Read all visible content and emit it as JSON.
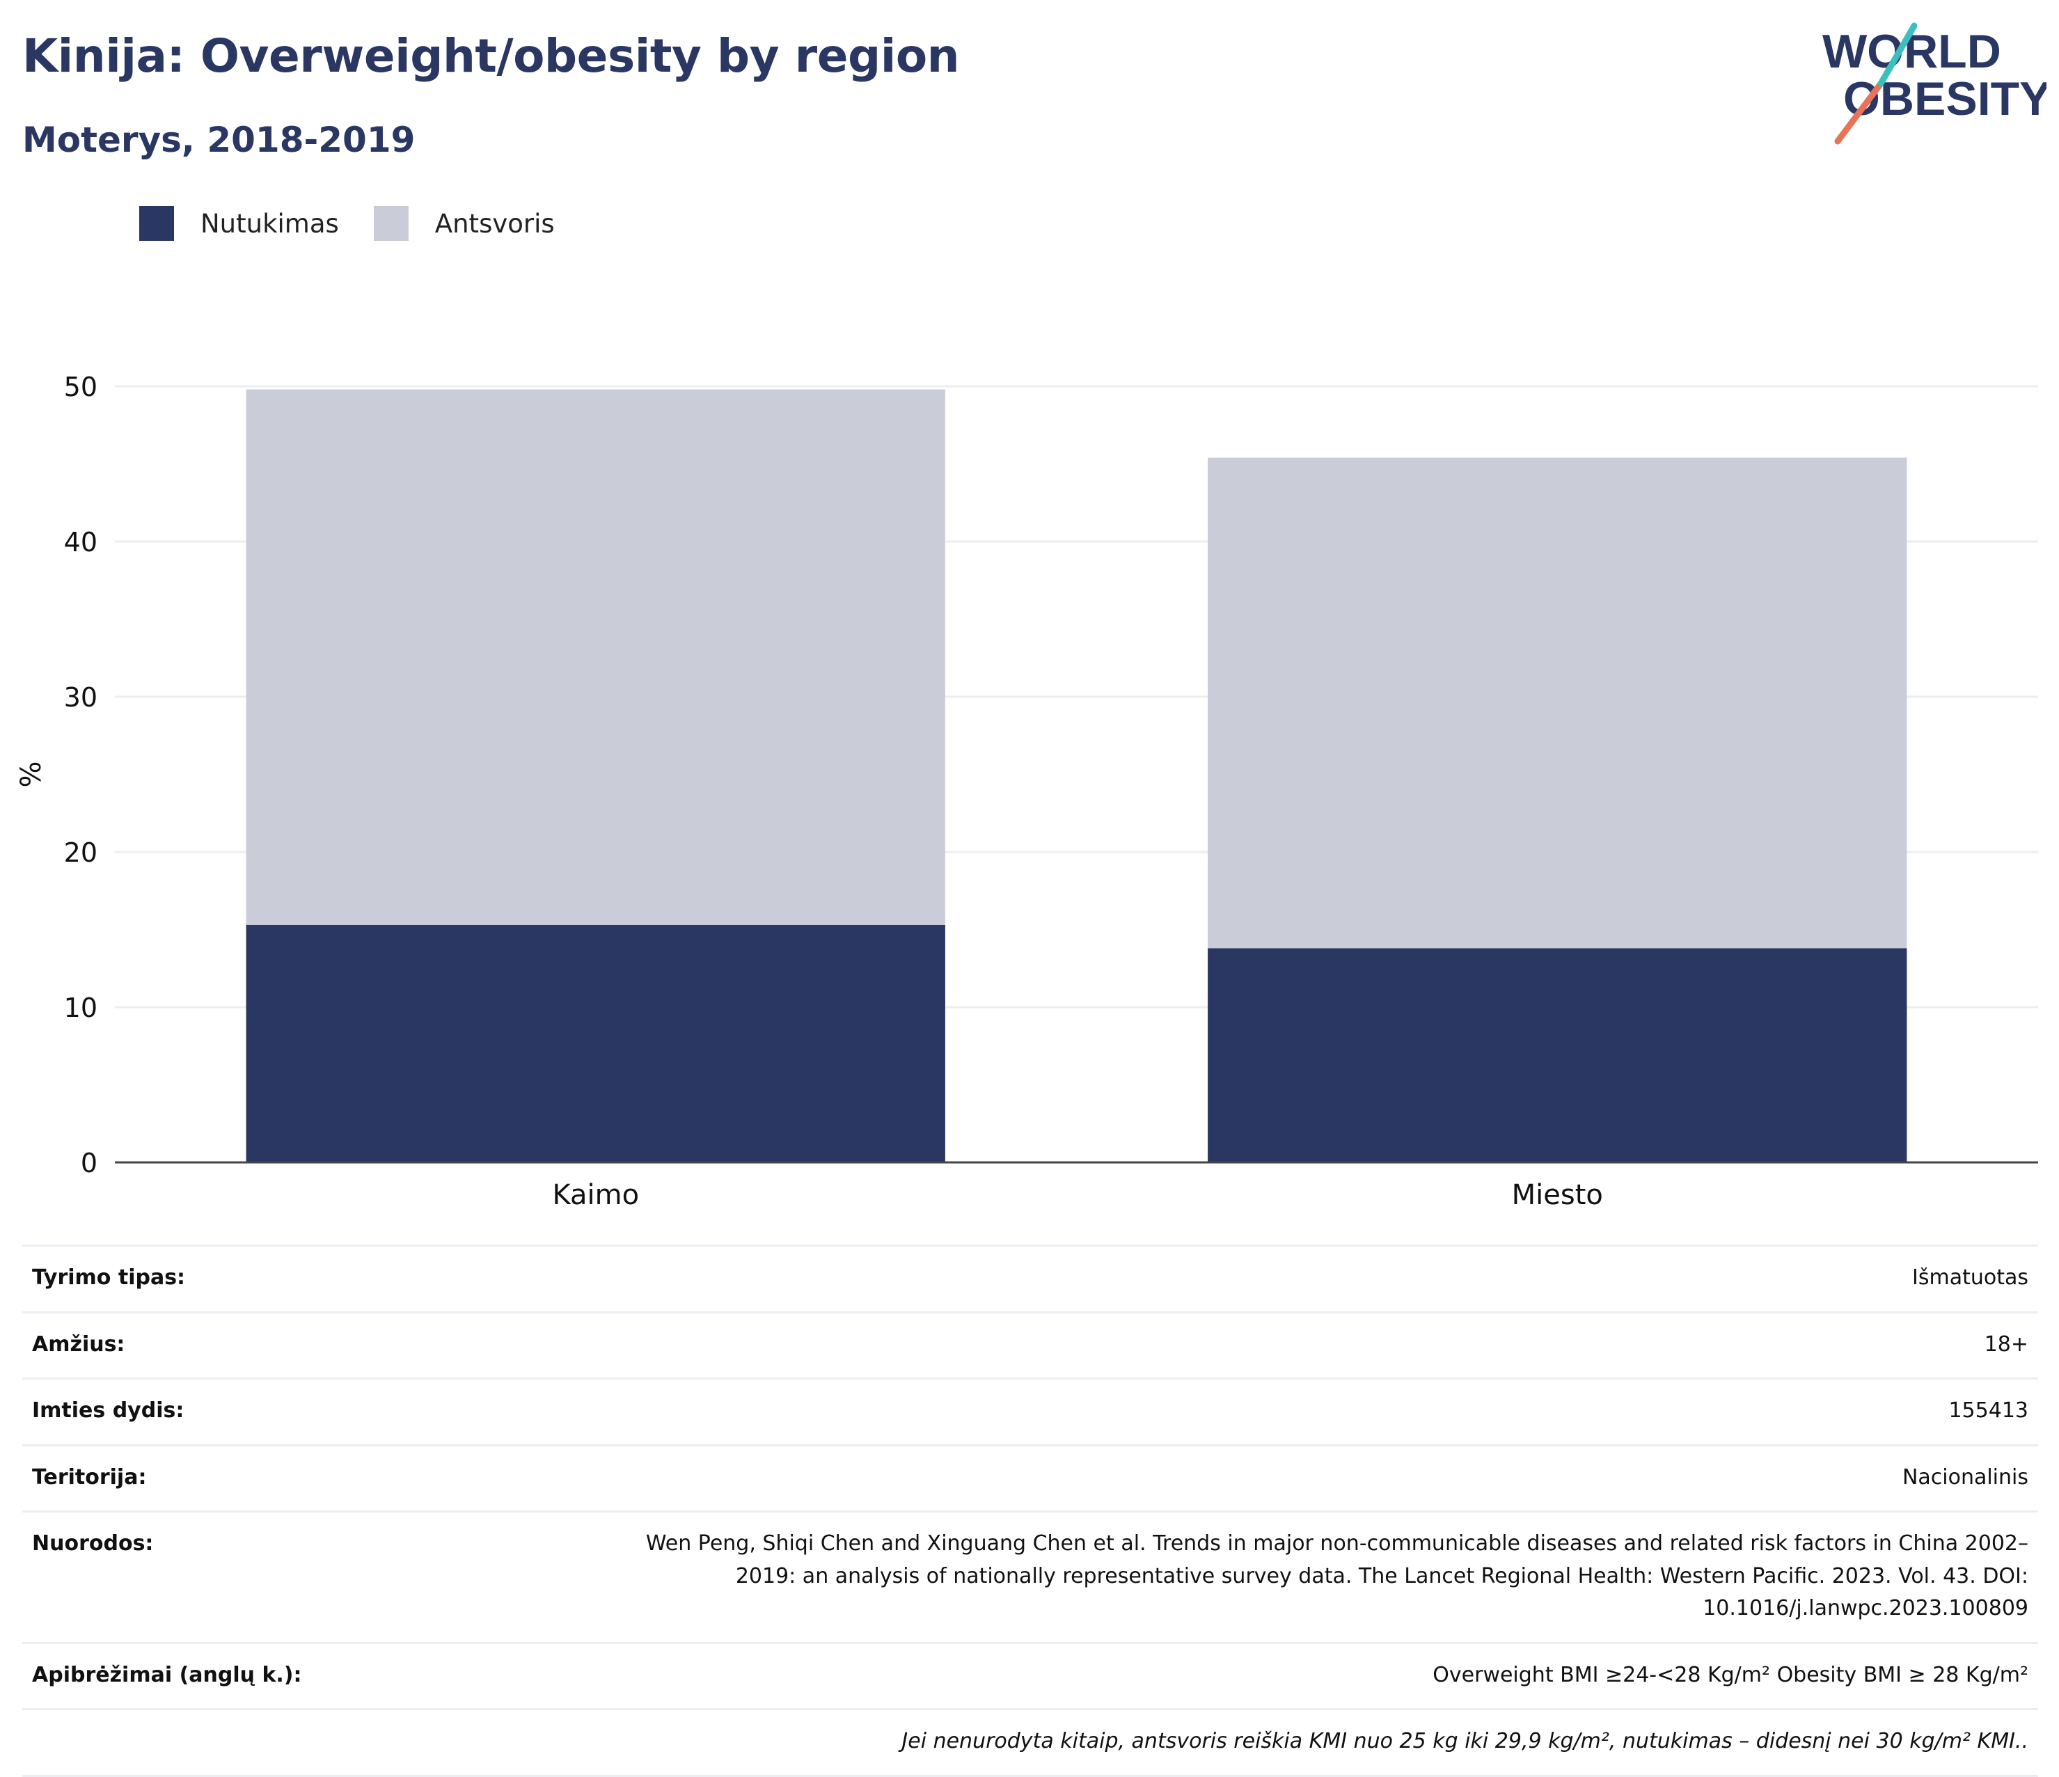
{
  "header": {
    "title": "Kinija: Overweight/obesity by region",
    "subtitle": "Moterys, 2018-2019"
  },
  "logo": {
    "line1": "WORLD",
    "line2": "OBESITY"
  },
  "colors": {
    "obesity": "#2b3763",
    "overweight": "#cacdd8",
    "accent_teal": "#3bbfbf",
    "accent_coral": "#e8735a"
  },
  "chart_data": {
    "type": "bar",
    "stacked": true,
    "categories": [
      "Kaimo",
      "Miesto"
    ],
    "series": [
      {
        "name": "Nutukimas",
        "values": [
          15.3,
          13.8
        ]
      },
      {
        "name": "Antsvoris",
        "values": [
          34.5,
          31.6
        ]
      }
    ],
    "ylabel": "%",
    "ylim": [
      0,
      50
    ],
    "yticks": [
      0,
      10,
      20,
      30,
      40,
      50
    ],
    "grid": true,
    "legend": "top-left"
  },
  "info": {
    "rows": [
      {
        "label": "Tyrimo tipas:",
        "value": "Išmatuotas"
      },
      {
        "label": "Amžius:",
        "value": "18+"
      },
      {
        "label": "Imties dydis:",
        "value": "155413"
      },
      {
        "label": "Teritorija:",
        "value": "Nacionalinis"
      },
      {
        "label": "Nuorodos:",
        "value": "Wen Peng, Shiqi Chen and Xinguang Chen et al. Trends in major non-communicable diseases and related risk factors in China 2002–2019: an analysis of nationally representative survey data. The Lancet Regional Health: Western Pacific. 2023. Vol. 43. DOI: 10.1016/j.lanwpc.2023.100809"
      },
      {
        "label": "Apibrėžimai (anglų k.):",
        "value": "Overweight BMI ≥24-<28 Kg/m² Obesity BMI ≥ 28 Kg/m²"
      }
    ],
    "note": "Jei nenurodyta kitaip, antsvoris reiškia KMI nuo 25 kg iki 29,9 kg/m², nutukimas – didesnį nei 30 kg/m² KMI.."
  }
}
